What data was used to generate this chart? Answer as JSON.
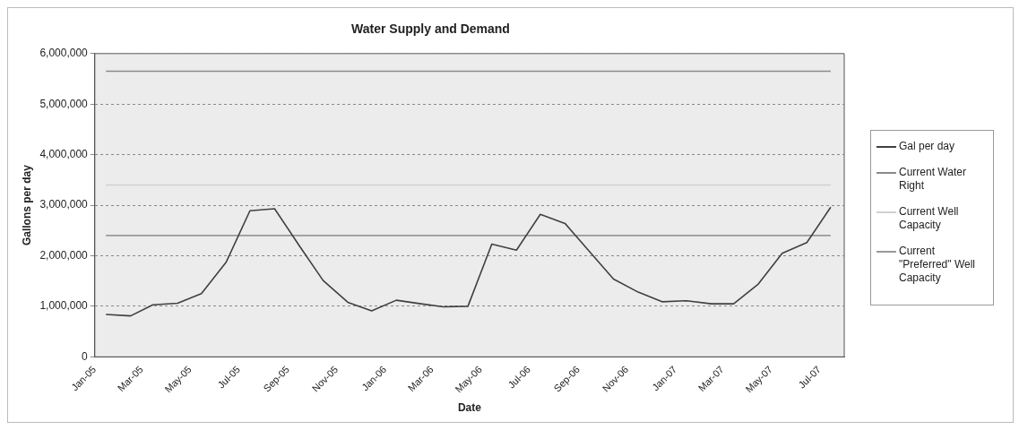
{
  "chart_data": {
    "type": "line",
    "title": "Water Supply and Demand",
    "xlabel": "Date",
    "ylabel": "Gallons per day",
    "x": [
      "2005-01-15",
      "2005-02-15",
      "2005-03-15",
      "2005-04-15",
      "2005-05-15",
      "2005-06-15",
      "2005-07-15",
      "2005-08-15",
      "2005-09-15",
      "2005-10-15",
      "2005-11-15",
      "2005-12-15",
      "2006-01-15",
      "2006-02-15",
      "2006-03-15",
      "2006-04-15",
      "2006-05-15",
      "2006-06-15",
      "2006-07-15",
      "2006-08-15",
      "2006-09-15",
      "2006-10-15",
      "2006-11-15",
      "2006-12-15",
      "2007-01-15",
      "2007-02-15",
      "2007-03-15",
      "2007-04-15",
      "2007-05-15",
      "2007-06-15",
      "2007-07-15"
    ],
    "series": [
      {
        "name": "Gal per day",
        "color": "#404040",
        "values": [
          840000,
          810000,
          1030000,
          1060000,
          1250000,
          1870000,
          2890000,
          2930000,
          2200000,
          1510000,
          1080000,
          910000,
          1120000,
          1050000,
          990000,
          1000000,
          2230000,
          2110000,
          2820000,
          2640000,
          2080000,
          1540000,
          1280000,
          1090000,
          1110000,
          1050000,
          1050000,
          1440000,
          2050000,
          2260000,
          2960000
        ]
      },
      {
        "name": "Current Water Right",
        "color": "#8a8a8a",
        "x": [
          "2005-01-15",
          "2007-07-15"
        ],
        "values": [
          5650000,
          5650000
        ]
      },
      {
        "name": "Current Well Capacity",
        "color": "#d0d0d0",
        "x": [
          "2005-01-15",
          "2007-07-15"
        ],
        "values": [
          3400000,
          3400000
        ]
      },
      {
        "name": "Current \"Preferred\" Well Capacity",
        "color": "#999999",
        "x": [
          "2005-01-15",
          "2007-07-15"
        ],
        "values": [
          2400000,
          2400000
        ]
      }
    ],
    "xlim": [
      "2005-01-01",
      "2007-08-01"
    ],
    "xticks": [
      {
        "value": "2005-01",
        "label": "Jan-05"
      },
      {
        "value": "2005-03",
        "label": "Mar-05"
      },
      {
        "value": "2005-05",
        "label": "May-05"
      },
      {
        "value": "2005-07",
        "label": "Jul-05"
      },
      {
        "value": "2005-09",
        "label": "Sep-05"
      },
      {
        "value": "2005-11",
        "label": "Nov-05"
      },
      {
        "value": "2006-01",
        "label": "Jan-06"
      },
      {
        "value": "2006-03",
        "label": "Mar-06"
      },
      {
        "value": "2006-05",
        "label": "May-06"
      },
      {
        "value": "2006-07",
        "label": "Jul-06"
      },
      {
        "value": "2006-09",
        "label": "Sep-06"
      },
      {
        "value": "2006-11",
        "label": "Nov-06"
      },
      {
        "value": "2007-01",
        "label": "Jan-07"
      },
      {
        "value": "2007-03",
        "label": "Mar-07"
      },
      {
        "value": "2007-05",
        "label": "May-07"
      },
      {
        "value": "2007-07",
        "label": "Jul-07"
      }
    ],
    "ylim": [
      0,
      6000000
    ],
    "yticks": [
      {
        "value": 0,
        "label": "0"
      },
      {
        "value": 1000000,
        "label": "1,000,000"
      },
      {
        "value": 2000000,
        "label": "2,000,000"
      },
      {
        "value": 3000000,
        "label": "3,000,000"
      },
      {
        "value": 4000000,
        "label": "4,000,000"
      },
      {
        "value": 5000000,
        "label": "5,000,000"
      },
      {
        "value": 6000000,
        "label": "6,000,000"
      }
    ],
    "grid": "y",
    "legend": "right",
    "marker": "none",
    "line_style": "solid"
  }
}
